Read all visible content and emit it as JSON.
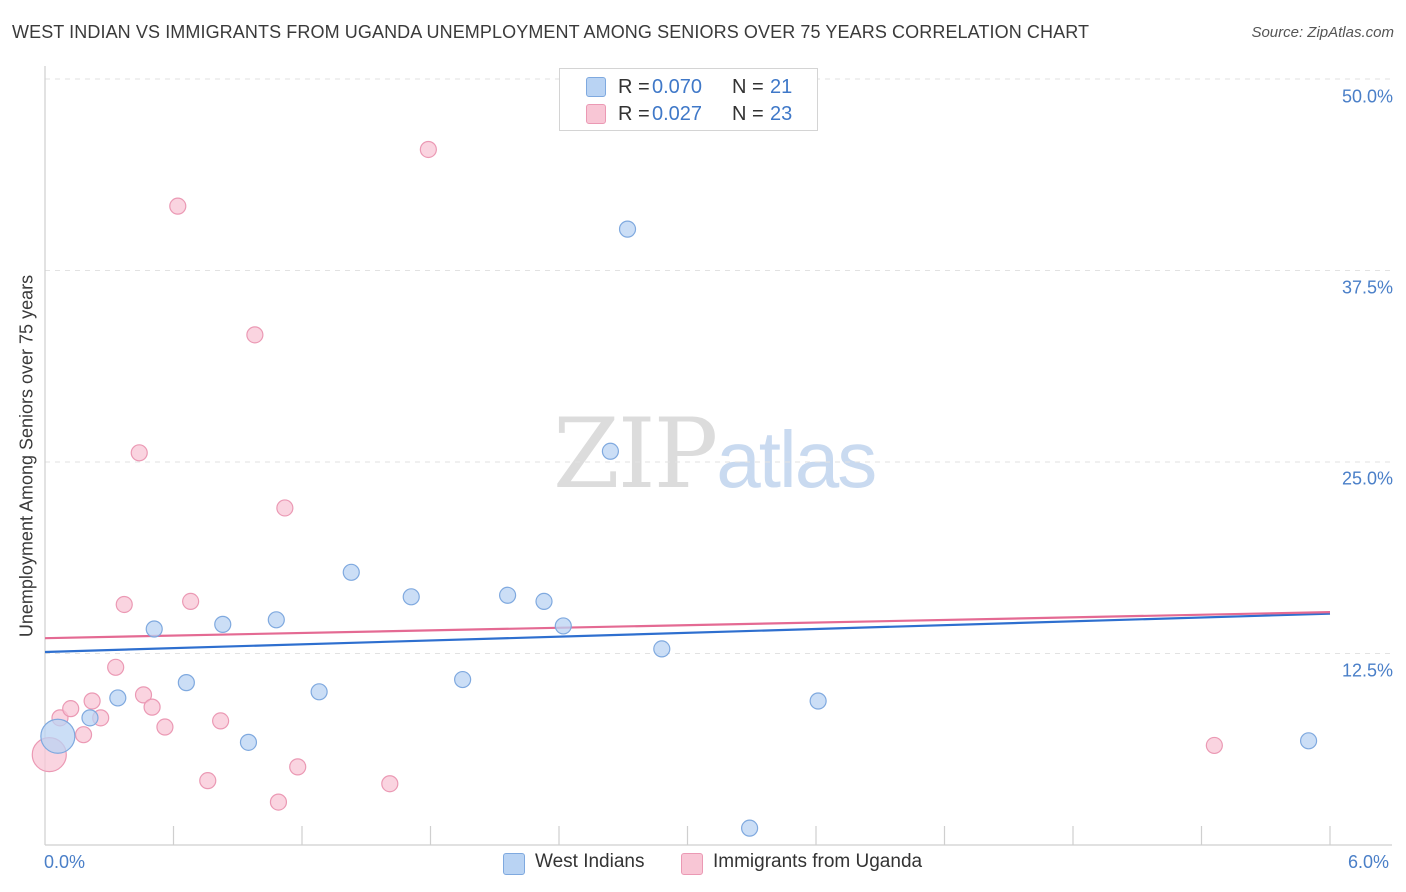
{
  "header": {
    "title": "WEST INDIAN VS IMMIGRANTS FROM UGANDA UNEMPLOYMENT AMONG SENIORS OVER 75 YEARS CORRELATION CHART",
    "source": "Source: ZipAtlas.com"
  },
  "watermark": {
    "zip": "ZIP",
    "atlas": "atlas"
  },
  "legend": {
    "rows": [
      {
        "r_label": "R =",
        "r_value": "0.070",
        "n_label": "N =",
        "n_value": "21"
      },
      {
        "r_label": "R =",
        "r_value": "0.027",
        "n_label": "N =",
        "n_value": "23"
      }
    ]
  },
  "colors": {
    "blue_fill": "#b9d3f3",
    "blue_stroke": "#7fa9df",
    "blue_line": "#2e6fcf",
    "pink_fill": "#f8c6d5",
    "pink_stroke": "#eb99b4",
    "pink_line": "#e46a93",
    "tick_text": "#4a7fc8"
  },
  "chart_data": {
    "type": "scatter",
    "title": "WEST INDIAN VS IMMIGRANTS FROM UGANDA UNEMPLOYMENT AMONG SENIORS OVER 75 YEARS CORRELATION CHART",
    "xlabel": "",
    "ylabel": "Unemployment Among Seniors over 75 years",
    "xlim": [
      0,
      6.0
    ],
    "ylim": [
      0,
      50
    ],
    "x_tick_labels": [
      "0.0%",
      "6.0%"
    ],
    "y_ticks": [
      12.5,
      25.0,
      37.5,
      50.0
    ],
    "y_tick_labels": [
      "12.5%",
      "25.0%",
      "37.5%",
      "50.0%"
    ],
    "grid": true,
    "legend_position": "top-center",
    "series": [
      {
        "name": "West Indians",
        "color": "blue",
        "r": 0.07,
        "n": 21,
        "trend": {
          "x": [
            0.0,
            6.0
          ],
          "y": [
            12.6,
            15.1
          ]
        },
        "points": [
          {
            "x": 0.06,
            "y": 7.1,
            "big": true
          },
          {
            "x": 0.21,
            "y": 8.3
          },
          {
            "x": 0.34,
            "y": 9.6
          },
          {
            "x": 0.51,
            "y": 14.1
          },
          {
            "x": 0.66,
            "y": 10.6
          },
          {
            "x": 0.83,
            "y": 14.4
          },
          {
            "x": 0.95,
            "y": 6.7
          },
          {
            "x": 1.08,
            "y": 14.7
          },
          {
            "x": 1.28,
            "y": 10.0
          },
          {
            "x": 1.43,
            "y": 17.8
          },
          {
            "x": 1.71,
            "y": 16.2
          },
          {
            "x": 1.95,
            "y": 10.8
          },
          {
            "x": 2.16,
            "y": 16.3
          },
          {
            "x": 2.33,
            "y": 15.9
          },
          {
            "x": 2.42,
            "y": 14.3
          },
          {
            "x": 2.64,
            "y": 25.7
          },
          {
            "x": 2.72,
            "y": 40.2
          },
          {
            "x": 2.88,
            "y": 12.8
          },
          {
            "x": 3.29,
            "y": 1.1
          },
          {
            "x": 3.61,
            "y": 9.4
          },
          {
            "x": 5.9,
            "y": 6.8
          }
        ]
      },
      {
        "name": "Immigrants from Uganda",
        "color": "pink",
        "r": 0.027,
        "n": 23,
        "trend": {
          "x": [
            0.0,
            6.0
          ],
          "y": [
            13.5,
            15.2
          ]
        },
        "points": [
          {
            "x": 0.02,
            "y": 5.9,
            "big": true
          },
          {
            "x": 0.07,
            "y": 8.3
          },
          {
            "x": 0.12,
            "y": 8.9
          },
          {
            "x": 0.18,
            "y": 7.2
          },
          {
            "x": 0.22,
            "y": 9.4
          },
          {
            "x": 0.26,
            "y": 8.3
          },
          {
            "x": 0.33,
            "y": 11.6
          },
          {
            "x": 0.37,
            "y": 15.7
          },
          {
            "x": 0.44,
            "y": 25.6
          },
          {
            "x": 0.46,
            "y": 9.8
          },
          {
            "x": 0.5,
            "y": 9.0
          },
          {
            "x": 0.56,
            "y": 7.7
          },
          {
            "x": 0.62,
            "y": 41.7
          },
          {
            "x": 0.68,
            "y": 15.9
          },
          {
            "x": 0.76,
            "y": 4.2
          },
          {
            "x": 0.82,
            "y": 8.1
          },
          {
            "x": 0.98,
            "y": 33.3
          },
          {
            "x": 1.09,
            "y": 2.8
          },
          {
            "x": 1.12,
            "y": 22.0
          },
          {
            "x": 1.18,
            "y": 5.1
          },
          {
            "x": 1.61,
            "y": 4.0
          },
          {
            "x": 1.79,
            "y": 45.4
          },
          {
            "x": 5.46,
            "y": 6.5
          }
        ]
      }
    ]
  }
}
